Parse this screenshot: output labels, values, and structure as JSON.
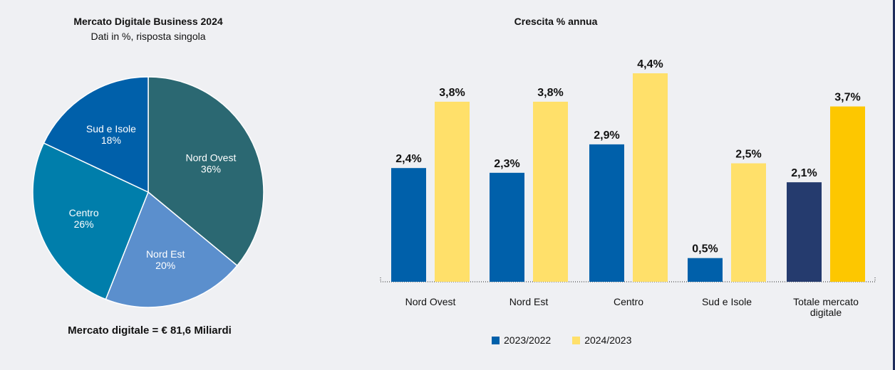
{
  "pie": {
    "title": "Mercato Digitale Business 2024",
    "subtitle": "Dati in %, risposta singola",
    "footer": "Mercato digitale =  € 81,6 Miliardi",
    "colors": {
      "nord_ovest": "#2b6872",
      "nord_est": "#5b8fcd",
      "centro": "#007eab",
      "sud_isole": "#0060aa"
    }
  },
  "bar": {
    "title": "Crescita % annua",
    "legend": [
      "2023/2022",
      "2024/2023"
    ],
    "colors": {
      "s1": "#0060aa",
      "s1_total": "#253b6e",
      "s2": "#ffe06a",
      "s2_total": "#fdc700"
    }
  },
  "chart_data": [
    {
      "type": "pie",
      "title": "Mercato Digitale Business 2024",
      "subtitle": "Dati in %, risposta singola",
      "slices": [
        {
          "label": "Nord Ovest",
          "value": 36,
          "display": "36%"
        },
        {
          "label": "Nord Est",
          "value": 20,
          "display": "20%"
        },
        {
          "label": "Centro",
          "value": 26,
          "display": "26%"
        },
        {
          "label": "Sud e Isole",
          "value": 18,
          "display": "18%"
        }
      ]
    },
    {
      "type": "bar",
      "title": "Crescita % annua",
      "categories": [
        "Nord Ovest",
        "Nord Est",
        "Centro",
        "Sud e Isole",
        "Totale mercato digitale"
      ],
      "category_lines": [
        [
          "Nord Ovest"
        ],
        [
          "Nord Est"
        ],
        [
          "Centro"
        ],
        [
          "Sud e Isole"
        ],
        [
          "Totale mercato",
          "digitale"
        ]
      ],
      "series": [
        {
          "name": "2023/2022",
          "values": [
            2.4,
            2.3,
            2.9,
            0.5,
            2.1
          ],
          "labels": [
            "2,4%",
            "2,3%",
            "2,9%",
            "0,5%",
            "2,1%"
          ]
        },
        {
          "name": "2024/2023",
          "values": [
            3.8,
            3.8,
            4.4,
            2.5,
            3.7
          ],
          "labels": [
            "3,8%",
            "3,8%",
            "4,4%",
            "2,5%",
            "3,7%"
          ]
        }
      ],
      "ylim": [
        0,
        4.4
      ],
      "grid": false,
      "legend_position": "bottom"
    }
  ]
}
